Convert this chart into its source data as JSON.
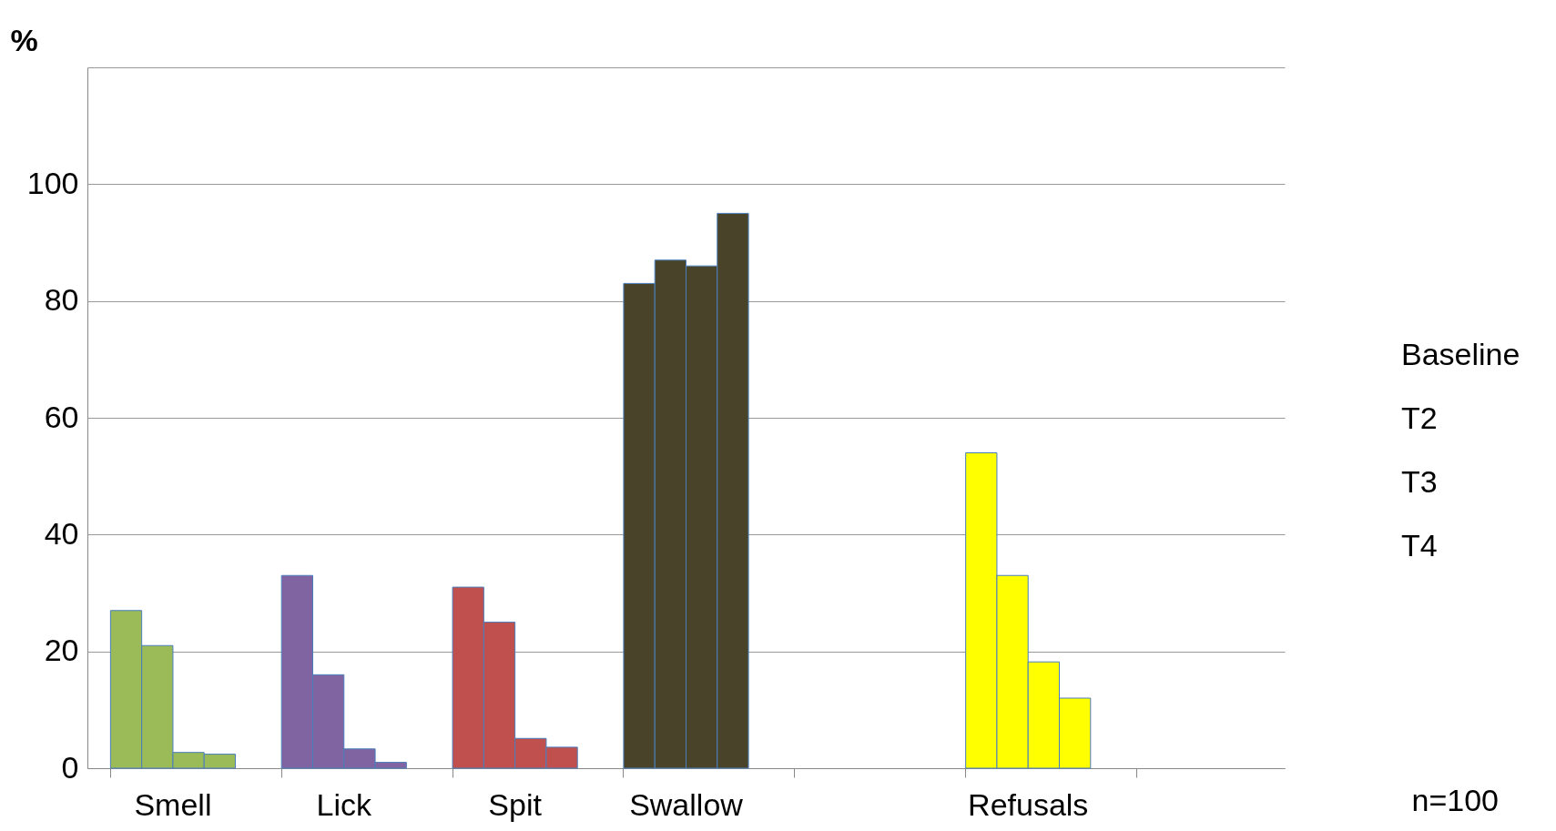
{
  "chart_data": {
    "type": "bar",
    "ylabel": "%",
    "categories": [
      "Smell",
      "Lick",
      "Spit",
      "Swallow",
      null,
      "Refusals",
      null
    ],
    "series": [
      {
        "name": "Baseline",
        "colors": [
          "#9bbb59",
          "#8064a2",
          "#c0504d",
          "#494429",
          null,
          "#ffff00",
          null
        ],
        "values": [
          27,
          33,
          31,
          83,
          null,
          54,
          null
        ]
      },
      {
        "name": "T2",
        "colors": [
          "#9bbb59",
          "#8064a2",
          "#c0504d",
          "#494429",
          null,
          "#ffff00",
          null
        ],
        "values": [
          21,
          16,
          25,
          87,
          null,
          33,
          null
        ]
      },
      {
        "name": "T3",
        "colors": [
          "#9bbb59",
          "#8064a2",
          "#c0504d",
          "#494429",
          null,
          "#ffff00",
          null
        ],
        "values": [
          2.7,
          3.3,
          5.1,
          86,
          null,
          18.2,
          null
        ]
      },
      {
        "name": "T4",
        "colors": [
          "#9bbb59",
          "#8064a2",
          "#c0504d",
          "#494429",
          null,
          "#ffff00",
          null
        ],
        "values": [
          2.4,
          1,
          3.6,
          95,
          null,
          12,
          null
        ]
      }
    ],
    "ylim": [
      0,
      120
    ],
    "yticks": [
      0,
      20,
      40,
      60,
      80,
      100,
      {
        "value": 120,
        "label": null
      }
    ],
    "grid": "y",
    "legend": "right",
    "annotations": [
      "n=100"
    ]
  }
}
